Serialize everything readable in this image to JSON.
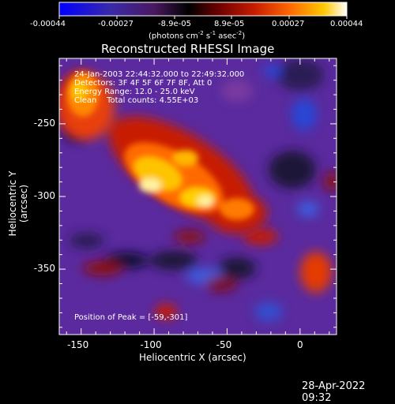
{
  "colorbar": {
    "ticks": [
      "-0.00044",
      "-0.00027",
      "-8.9e-05",
      "8.9e-05",
      "0.00027",
      "0.00044"
    ],
    "units_prefix": "(photons cm",
    "units_exp1": "-2",
    "units_mid": " s",
    "units_exp2": "-1",
    "units_mid2": " asec",
    "units_exp3": "-2",
    "units_suffix": ")",
    "stops": [
      "#0000ff",
      "#3a2aa8",
      "#5a1f4f",
      "#000000",
      "#6a0000",
      "#c81c00",
      "#ff6600",
      "#ffc800",
      "#ffffff"
    ]
  },
  "title": "Reconstructed RHESSI Image",
  "info": {
    "line1": "24-Jan-2003 22:44:32.000 to 22:49:32.000",
    "line2": "Detectors: 3F 4F 5F 6F 7F 8F, Att 0",
    "line3": "Energy Range: 12.0 - 25.0 keV",
    "line4": "Clean    Total counts: 4.55E+03"
  },
  "peak": "Position of Peak = [-59,-301]",
  "x_axis": {
    "title": "Heliocentric X (arcsec)",
    "ticks": [
      {
        "label": "-150",
        "value": -150
      },
      {
        "label": "-100",
        "value": -100
      },
      {
        "label": "-50",
        "value": -50
      },
      {
        "label": "0",
        "value": 0
      }
    ],
    "range": [
      -165,
      25
    ]
  },
  "y_axis": {
    "title": "Heliocentric Y (arcsec)",
    "ticks": [
      {
        "label": "-250",
        "value": -250
      },
      {
        "label": "-300",
        "value": -300
      },
      {
        "label": "-350",
        "value": -350
      }
    ],
    "range": [
      -395,
      -205
    ]
  },
  "timestamp": "28-Apr-2022 09:32"
}
